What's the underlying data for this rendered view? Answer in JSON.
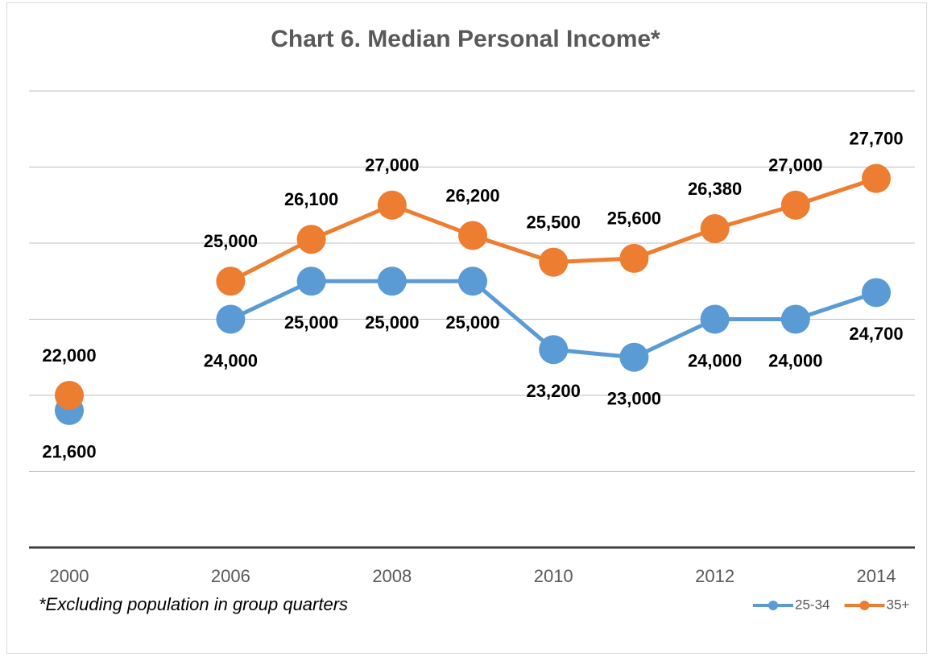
{
  "chart_data": {
    "type": "line",
    "title": "Chart 6. Median Personal Income*",
    "note": "*Excluding population in group quarters",
    "categories": [
      "2000",
      null,
      "2006",
      null,
      "2008",
      null,
      "2010",
      null,
      "2012",
      null,
      "2014"
    ],
    "series": [
      {
        "name": "25-34",
        "color": "#5b9bd5",
        "values": [
          21600,
          null,
          24000,
          25000,
          25000,
          25000,
          23200,
          23000,
          24000,
          24000,
          24700
        ],
        "value_labels": [
          "21,600",
          null,
          "24,000",
          "25,000",
          "25,000",
          "25,000",
          "23,200",
          "23,000",
          "24,000",
          "24,000",
          "24,700"
        ]
      },
      {
        "name": "35+",
        "color": "#ed7d31",
        "values": [
          22000,
          null,
          25000,
          26100,
          27000,
          26200,
          25500,
          25600,
          26380,
          27000,
          27700
        ],
        "value_labels": [
          "22,000",
          null,
          "25,000",
          "26,100",
          "27,000",
          "26,200",
          "25,500",
          "25,600",
          "26,380",
          "27,000",
          "27,700"
        ]
      }
    ],
    "ylim": [
      18000,
      30000
    ],
    "yticks": [
      18000,
      20000,
      22000,
      24000,
      26000,
      28000,
      30000
    ],
    "grid": true,
    "legend": "bottom-right"
  }
}
